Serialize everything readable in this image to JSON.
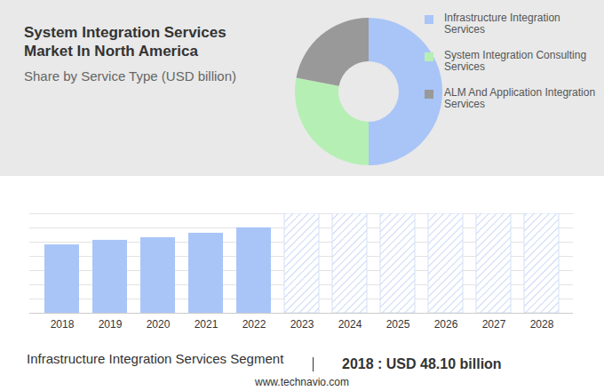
{
  "chart_data": [
    {
      "type": "donut",
      "title": "System Integration Services Market In North America",
      "subtitle": "Share by Service Type (USD billion)",
      "categories": [
        "Infrastructure Integration Services",
        "System Integration Consulting Services",
        "ALM And Application Integration Services"
      ],
      "values": [
        50,
        28,
        22
      ],
      "colors": [
        "#a9c5f7",
        "#b6efb4",
        "#999999"
      ],
      "legend": "right"
    },
    {
      "type": "bar",
      "categories": [
        "2018",
        "2019",
        "2020",
        "2021",
        "2022",
        "2023",
        "2024",
        "2025",
        "2026",
        "2027",
        "2028"
      ],
      "values": [
        48.1,
        51.3,
        53.2,
        56.3,
        60.1,
        null,
        null,
        null,
        null,
        null,
        null
      ],
      "color": "#a9c5f7",
      "ylim": [
        0,
        70
      ],
      "yticks": [
        0,
        10,
        20,
        30,
        40,
        50,
        60,
        70
      ],
      "grid": true,
      "tick_labels": "x",
      "annotations": [
        "Infrastructure Integration Services Segment",
        "2018 : USD 48.10 billion",
        "www.technavio.com"
      ]
    }
  ]
}
